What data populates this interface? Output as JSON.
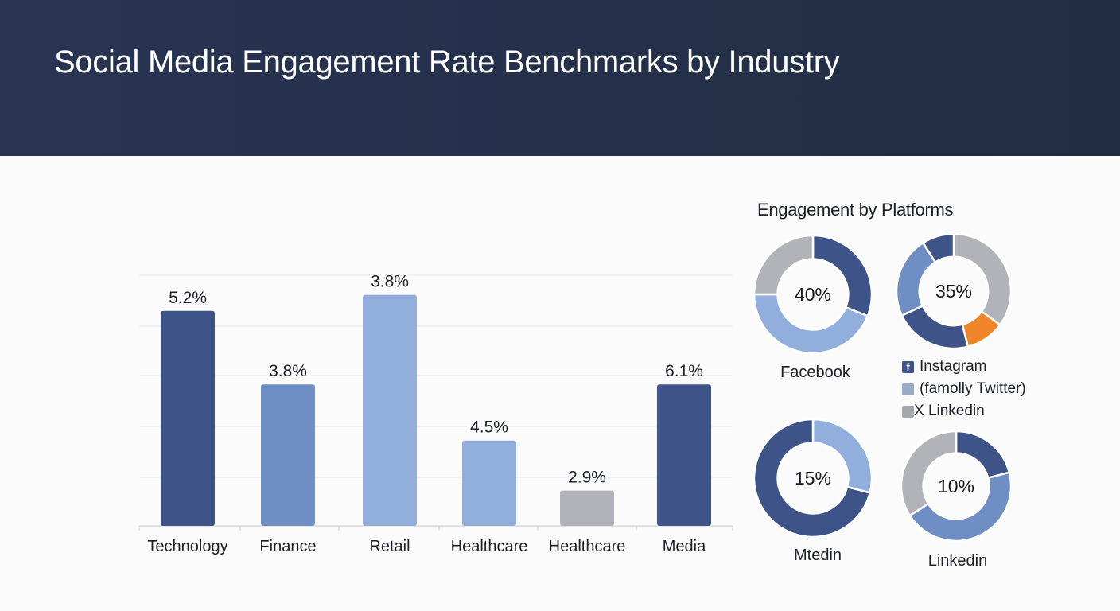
{
  "header": {
    "title": "Social Media Engagement Rate Benchmarks by Industry"
  },
  "colors": {
    "header_bg": "#263150",
    "dark_blue": "#3e5489",
    "mid_blue": "#6f8fc4",
    "light_blue": "#91aedc",
    "gray": "#b1b3b8",
    "orange": "#f08629"
  },
  "chart_data": [
    {
      "type": "bar",
      "categories": [
        "Technology",
        "Finance",
        "Retail",
        "Healthcare",
        "Healthcare",
        "Media"
      ],
      "values": [
        5.2,
        3.8,
        3.8,
        4.5,
        2.9,
        6.1
      ],
      "value_labels": [
        "5.2%",
        "3.8%",
        "3.8%",
        "4.5%",
        "2.9%",
        "6.1%"
      ],
      "bar_heights_pct": [
        71.3,
        46.9,
        76.6,
        28.3,
        11.7,
        46.9
      ],
      "bar_colors": [
        "#3e5489",
        "#6f8fc4",
        "#91aedc",
        "#91aedc",
        "#b1b3b8",
        "#3e5489"
      ],
      "grid": true,
      "title": "",
      "xlabel": "",
      "ylabel": ""
    },
    {
      "type": "pie",
      "title": "Engagement by Platforms",
      "donuts": [
        {
          "center_label": "40%",
          "label": "Facebook",
          "slices": [
            {
              "value": 31,
              "color": "#3e5489"
            },
            {
              "value": 44,
              "color": "#91aedc"
            },
            {
              "value": 25,
              "color": "#b1b3b8"
            }
          ],
          "start_angle": 0
        },
        {
          "center_label": "35%",
          "label": "",
          "slices": [
            {
              "value": 35,
              "color": "#b1b3b8"
            },
            {
              "value": 11,
              "color": "#f08629"
            },
            {
              "value": 22,
              "color": "#3e5489"
            },
            {
              "value": 23,
              "color": "#6f8fc4"
            },
            {
              "value": 9,
              "color": "#3e5489"
            }
          ],
          "start_angle": 0
        },
        {
          "center_label": "15%",
          "label": "Mtedin",
          "slices": [
            {
              "value": 29,
              "color": "#91aedc"
            },
            {
              "value": 71,
              "color": "#3e5489"
            }
          ],
          "start_angle": 0
        },
        {
          "center_label": "10%",
          "label": "Linkedin",
          "slices": [
            {
              "value": 21,
              "color": "#3e5489"
            },
            {
              "value": 45,
              "color": "#6f8fc4"
            },
            {
              "value": 34,
              "color": "#b1b3b8"
            }
          ],
          "start_angle": 0
        }
      ],
      "legend": [
        {
          "label": "Instagram",
          "color": "#3e5489",
          "icon": "facebook-f-icon"
        },
        {
          "label": "(famolly Twitter)",
          "color": "#9aabc6",
          "icon": "square-icon"
        },
        {
          "label": "X Linkedin",
          "color": "#a5a7ac",
          "icon": "square-icon"
        }
      ]
    }
  ]
}
